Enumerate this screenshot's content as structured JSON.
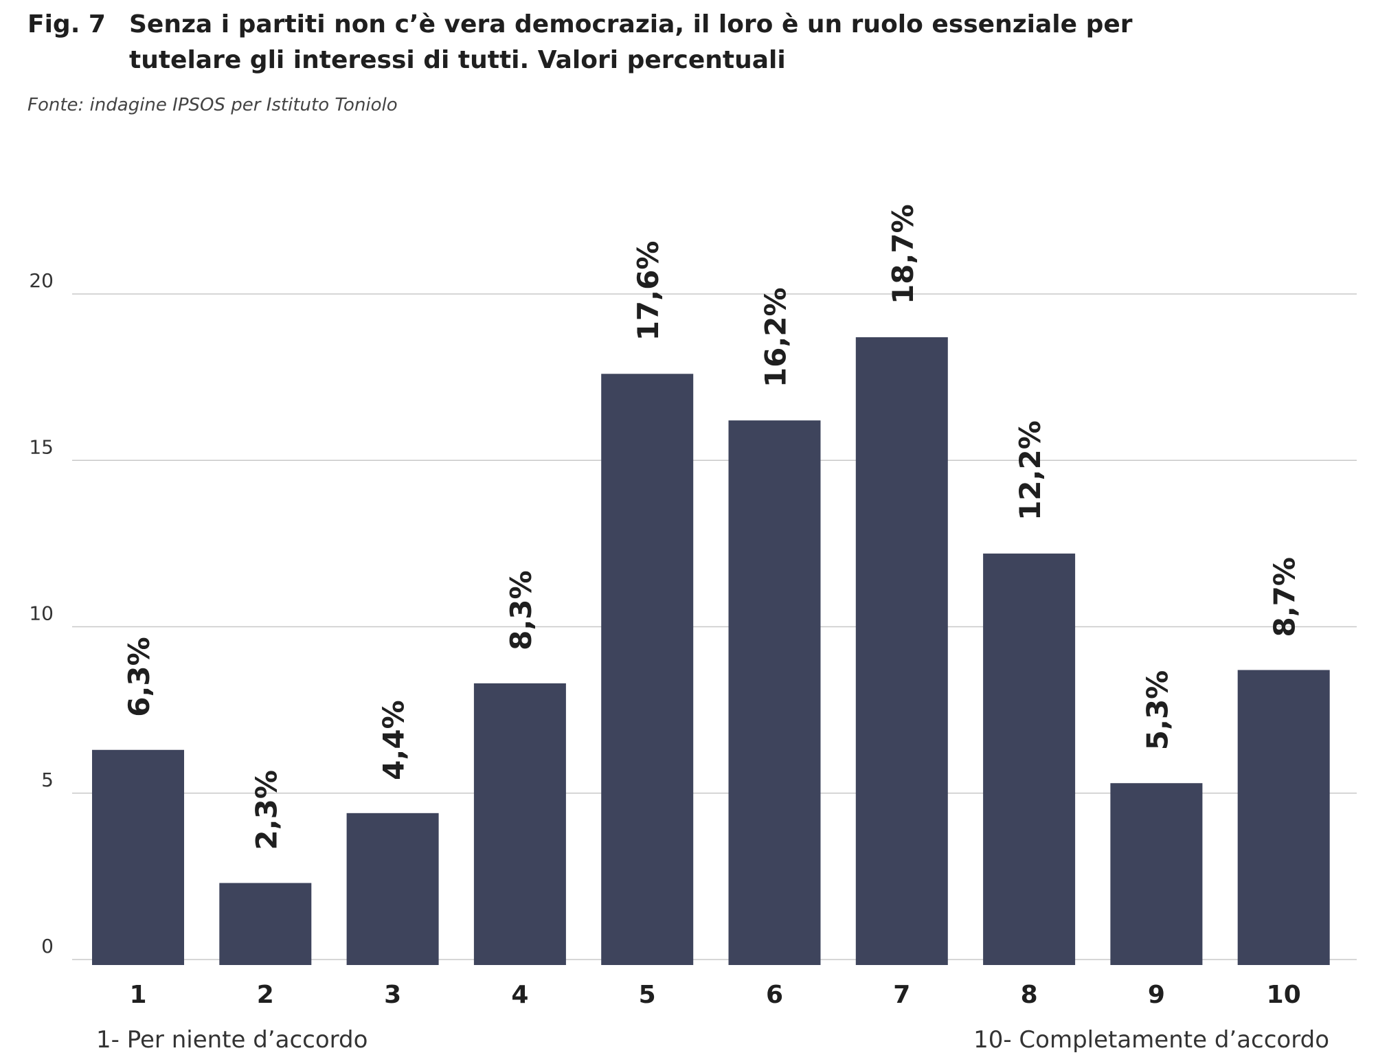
{
  "figure": {
    "label": "Fig. 7",
    "title": "Senza i partiti non c’è vera democrazia, il loro è un ruolo essenziale per tutelare gli interessi di tutti. Valori percentuali",
    "source": "Fonte: indagine IPSOS per Istituto Toniolo"
  },
  "chart_data": {
    "type": "bar",
    "categories": [
      "1",
      "2",
      "3",
      "4",
      "5",
      "6",
      "7",
      "8",
      "9",
      "10"
    ],
    "values": [
      6.3,
      2.3,
      4.4,
      8.3,
      17.6,
      16.2,
      18.7,
      12.2,
      5.3,
      8.7
    ],
    "data_labels": [
      "6,3%",
      "2,3%",
      "4,4%",
      "8,3%",
      "17,6%",
      "16,2%",
      "18,7%",
      "12,2%",
      "5,3%",
      "8,7%"
    ],
    "y_ticks": [
      0,
      5,
      10,
      15,
      20
    ],
    "ylim": [
      0,
      20
    ],
    "grid": true,
    "bar_color": "#3e445c",
    "scale_left_label": "1- Per niente d’accordo",
    "scale_right_label": "10- Completamente d’accordo"
  }
}
